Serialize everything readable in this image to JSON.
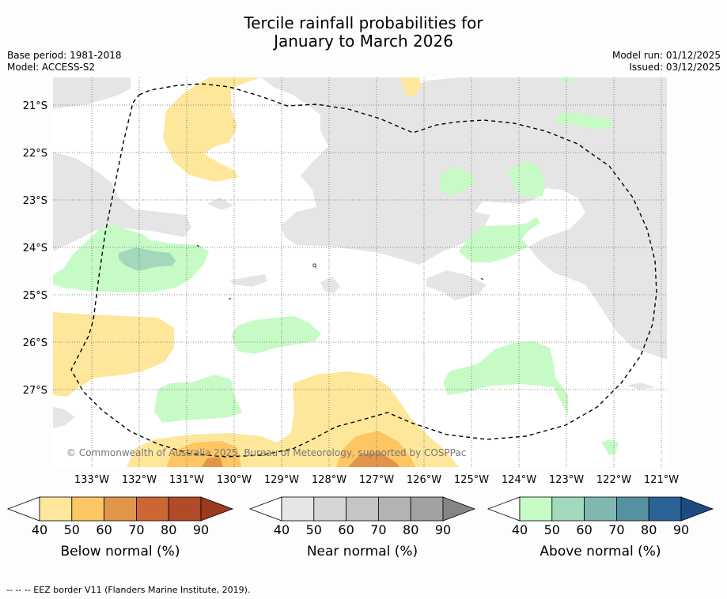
{
  "title": {
    "line1": "Tercile rainfall probabilities for",
    "line2": "January to March 2026"
  },
  "meta": {
    "base_period": "Base period: 1981-2018",
    "model": "Model: ACCESS-S2",
    "model_run": "Model run: 01/12/2025",
    "issued": "Issued: 03/12/2025"
  },
  "map": {
    "lat_labels": [
      "21°S",
      "22°S",
      "23°S",
      "24°S",
      "25°S",
      "26°S",
      "27°S"
    ],
    "lon_labels": [
      "133°W",
      "132°W",
      "131°W",
      "130°W",
      "129°W",
      "128°W",
      "127°W",
      "126°W",
      "125°W",
      "124°W",
      "123°W",
      "122°W",
      "121°W"
    ],
    "copyright": "© Commonwealth of Australia 2025, Bureau of Meteorology, supported by COSPPac",
    "eez_label_fragment": "q"
  },
  "legends": [
    {
      "label": "Below normal (%)",
      "ticks": [
        "40",
        "50",
        "60",
        "70",
        "80",
        "90"
      ],
      "colors": [
        "#fee79b",
        "#fdc662",
        "#e0954a",
        "#cc6633",
        "#b04a28",
        "#9b3a1f"
      ]
    },
    {
      "label": "Near normal (%)",
      "ticks": [
        "40",
        "50",
        "60",
        "70",
        "80",
        "90"
      ],
      "colors": [
        "#e6e6e6",
        "#d6d6d6",
        "#c5c5c5",
        "#b3b3b3",
        "#a1a1a1",
        "#858585"
      ]
    },
    {
      "label": "Above normal (%)",
      "ticks": [
        "40",
        "50",
        "60",
        "70",
        "80",
        "90"
      ],
      "colors": [
        "#c6fbc6",
        "#a2d8bb",
        "#80b8b0",
        "#5591a0",
        "#2c6395",
        "#1b4b80"
      ]
    }
  ],
  "footer": "--  --  -- EEZ border V11 (Flanders Marine Institute, 2019)."
}
